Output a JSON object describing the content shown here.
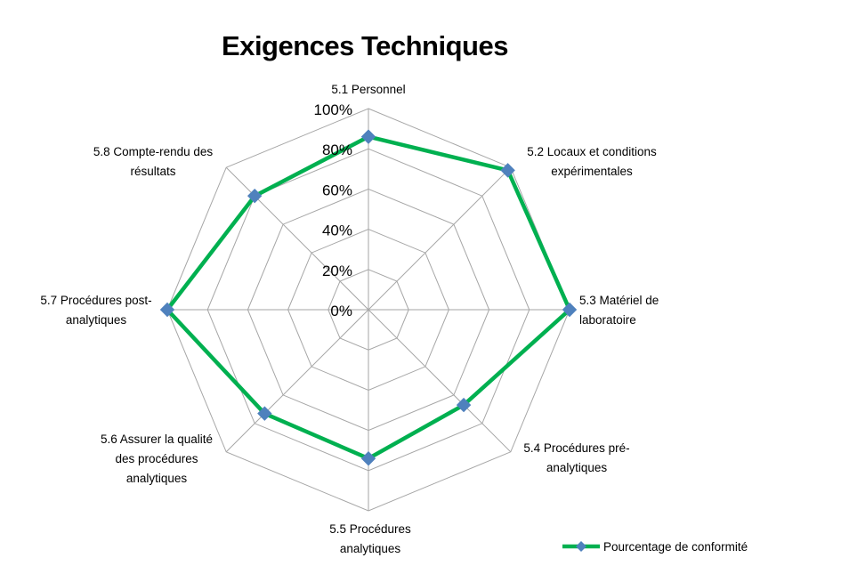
{
  "chart_data": {
    "type": "radar",
    "title": "Exigences Techniques",
    "categories": [
      "5.1 Personnel",
      "5.2 Locaux et conditions expérimentales",
      "5.3 Matériel de laboratoire",
      "5.4 Procédures pré-analytiques",
      "5.5 Procédures analytiques",
      "5.6 Assurer la qualité des procédures analytiques",
      "5.7 Procédures post-analytiques",
      "5.8 Compte-rendu des résultats"
    ],
    "category_lines": [
      [
        "5.1 Personnel"
      ],
      [
        "5.2 Locaux et conditions",
        "expérimentales"
      ],
      [
        "5.3 Matériel de",
        "laboratoire"
      ],
      [
        "5.4 Procédures pré-",
        "analytiques"
      ],
      [
        "5.5 Procédures",
        "analytiques"
      ],
      [
        "5.6 Assurer la qualité",
        "des procédures",
        "analytiques"
      ],
      [
        "5.7 Procédures post-",
        "analytiques"
      ],
      [
        "5.8 Compte-rendu des",
        "résultats"
      ]
    ],
    "series": [
      {
        "name": "Pourcentage de conformité",
        "values": [
          86,
          98,
          100,
          67,
          74,
          73,
          100,
          80
        ],
        "color": "#00B050",
        "marker_color": "#4F81BD"
      }
    ],
    "rlim": [
      0,
      100
    ],
    "ticks": [
      "0%",
      "20%",
      "40%",
      "60%",
      "80%",
      "100%"
    ],
    "tick_values": [
      0,
      20,
      40,
      60,
      80,
      100
    ],
    "grid": true,
    "grid_color": "#A6A6A6",
    "legend_position": "bottom-right"
  }
}
